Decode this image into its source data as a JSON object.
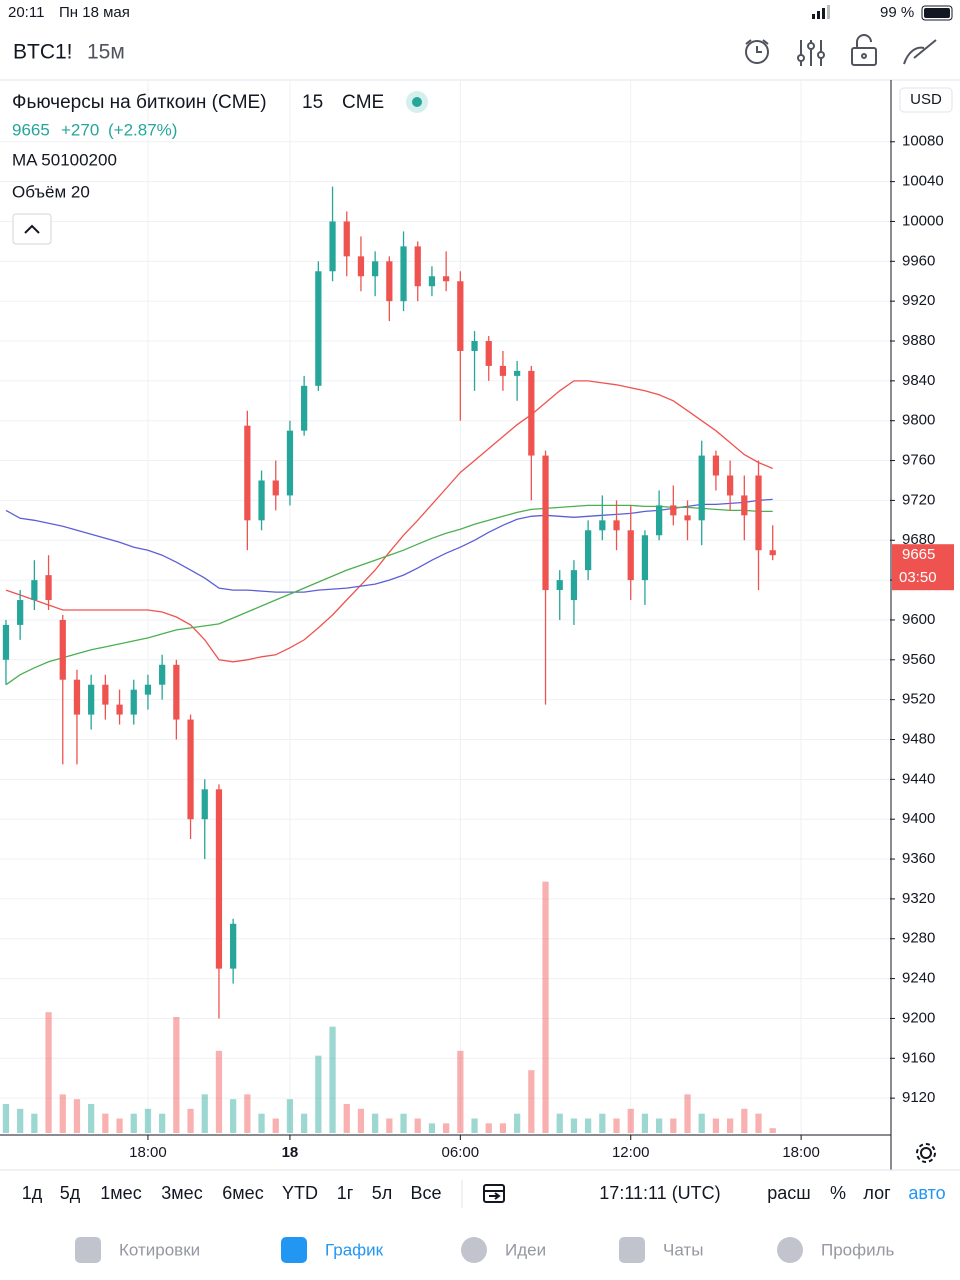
{
  "status_bar": {
    "time": "20:11",
    "date": "Пн 18 мая",
    "battery": "99 %"
  },
  "header": {
    "symbol": "BTC1!",
    "interval": "15м"
  },
  "legend": {
    "name": "Фьючерсы на биткоин (CME)",
    "interval": "15",
    "exchange": "CME",
    "price": "9665",
    "change": "+270",
    "change_pct": "(+2.87%)",
    "ma": "MA 50100200",
    "volume": "Объём 20"
  },
  "chart_data": {
    "type": "candlestick",
    "currency": "USD",
    "open": [
      9560,
      9595,
      9620,
      9645,
      9600,
      9540,
      9505,
      9535,
      9515,
      9505,
      9525,
      9535,
      9555,
      9500,
      9400,
      9430,
      9250,
      9795,
      9700,
      9740,
      9725,
      9790,
      9835,
      9950,
      10000,
      9965,
      9945,
      9960,
      9920,
      9975,
      9935,
      9945,
      9940,
      9870,
      9880,
      9855,
      9845,
      9850,
      9765,
      9630,
      9620,
      9650,
      9690,
      9700,
      9690,
      9640,
      9685,
      9715,
      9705,
      9700,
      9765,
      9745,
      9725,
      9745,
      9670
    ],
    "high": [
      9600,
      9630,
      9660,
      9665,
      9605,
      9550,
      9545,
      9545,
      9530,
      9540,
      9545,
      9565,
      9560,
      9505,
      9440,
      9435,
      9300,
      9810,
      9750,
      9760,
      9800,
      9845,
      9960,
      10035,
      10010,
      9985,
      9970,
      9965,
      9990,
      9980,
      9955,
      9970,
      9950,
      9890,
      9885,
      9870,
      9860,
      9855,
      9770,
      9650,
      9660,
      9700,
      9725,
      9720,
      9715,
      9690,
      9730,
      9735,
      9720,
      9780,
      9770,
      9760,
      9745,
      9760,
      9695
    ],
    "low": [
      9535,
      9580,
      9610,
      9610,
      9455,
      9455,
      9490,
      9500,
      9495,
      9495,
      9510,
      9520,
      9480,
      9380,
      9360,
      9200,
      9235,
      9670,
      9690,
      9710,
      9715,
      9785,
      9830,
      9940,
      9945,
      9930,
      9925,
      9900,
      9910,
      9920,
      9925,
      9930,
      9800,
      9830,
      9840,
      9830,
      9820,
      9720,
      9515,
      9600,
      9595,
      9640,
      9680,
      9670,
      9620,
      9615,
      9680,
      9695,
      9680,
      9675,
      9730,
      9710,
      9680,
      9630,
      9660
    ],
    "close": [
      9595,
      9620,
      9640,
      9620,
      9540,
      9505,
      9535,
      9515,
      9505,
      9530,
      9535,
      9555,
      9500,
      9400,
      9430,
      9250,
      9295,
      9700,
      9740,
      9725,
      9790,
      9835,
      9950,
      10000,
      9965,
      9945,
      9960,
      9920,
      9975,
      9935,
      9945,
      9940,
      9870,
      9880,
      9855,
      9845,
      9850,
      9765,
      9630,
      9640,
      9650,
      9690,
      9700,
      9690,
      9640,
      9685,
      9715,
      9705,
      9700,
      9765,
      9745,
      9725,
      9705,
      9670,
      9665
    ],
    "volume": [
      30,
      25,
      20,
      125,
      40,
      35,
      30,
      20,
      15,
      20,
      25,
      20,
      120,
      25,
      40,
      85,
      35,
      40,
      20,
      15,
      35,
      20,
      80,
      110,
      30,
      25,
      20,
      15,
      20,
      15,
      10,
      10,
      85,
      15,
      10,
      10,
      20,
      65,
      260,
      20,
      15,
      15,
      20,
      15,
      25,
      20,
      15,
      15,
      40,
      20,
      15,
      15,
      25,
      20,
      5
    ],
    "ma": [
      {
        "color": "#ef5350",
        "values": [
          9630,
          9625,
          9620,
          9615,
          9610,
          9610,
          9610,
          9610,
          9610,
          9610,
          9610,
          9608,
          9603,
          9595,
          9580,
          9560,
          9558,
          9560,
          9563,
          9565,
          9572,
          9580,
          9592,
          9605,
          9620,
          9635,
          9650,
          9668,
          9685,
          9700,
          9716,
          9732,
          9748,
          9760,
          9772,
          9784,
          9796,
          9806,
          9818,
          9830,
          9840,
          9840,
          9838,
          9836,
          9833,
          9830,
          9826,
          9820,
          9810,
          9800,
          9790,
          9778,
          9766,
          9758,
          9752
        ]
      },
      {
        "color": "#5b5fd6",
        "values": [
          9710,
          9702,
          9700,
          9697,
          9694,
          9690,
          9686,
          9682,
          9678,
          9673,
          9670,
          9665,
          9658,
          9650,
          9642,
          9632,
          9630,
          9630,
          9629,
          9628,
          9628,
          9628,
          9630,
          9631,
          9632,
          9634,
          9636,
          9640,
          9645,
          9652,
          9660,
          9667,
          9673,
          9680,
          9688,
          9695,
          9701,
          9704,
          9705,
          9704,
          9703,
          9704,
          9705,
          9706,
          9707,
          9709,
          9710,
          9712,
          9714,
          9716,
          9716,
          9717,
          9718,
          9720,
          9721
        ]
      },
      {
        "color": "#4caf50",
        "values": [
          9535,
          9545,
          9552,
          9558,
          9562,
          9566,
          9570,
          9573,
          9576,
          9579,
          9582,
          9586,
          9590,
          9592,
          9594,
          9596,
          9602,
          9608,
          9614,
          9620,
          9626,
          9632,
          9638,
          9644,
          9650,
          9655,
          9660,
          9665,
          9670,
          9676,
          9682,
          9687,
          9691,
          9696,
          9700,
          9704,
          9708,
          9711,
          9712,
          9713,
          9714,
          9715,
          9715,
          9715,
          9715,
          9714,
          9714,
          9713,
          9713,
          9712,
          9711,
          9710,
          9710,
          9709,
          9709
        ]
      }
    ],
    "up_color": "#26a69a",
    "down_color": "#ef5350",
    "ylim": [
      9083,
      10142
    ],
    "yticks": [
      9120,
      9160,
      9200,
      9240,
      9280,
      9320,
      9360,
      9400,
      9440,
      9480,
      9520,
      9560,
      9600,
      9640,
      9680,
      9720,
      9760,
      9800,
      9840,
      9880,
      9920,
      9960,
      10000,
      10040,
      10080
    ],
    "xlim": [
      -0.42,
      62.26
    ],
    "xticks": [
      {
        "value": 10,
        "label": "18:00"
      },
      {
        "value": 20,
        "label": "18"
      },
      {
        "value": 32,
        "label": "06:00"
      },
      {
        "value": 44,
        "label": "12:00"
      },
      {
        "value": 56,
        "label": "18:00"
      }
    ],
    "vlim": [
      0,
      300
    ],
    "last_price": 9665,
    "countdown": "03:50",
    "grid": true
  },
  "toolbar": {
    "periods": [
      "1д",
      "5д",
      "1мес",
      "3мес",
      "6мес",
      "YTD",
      "1г",
      "5л",
      "Все"
    ],
    "clock": "17:11:11 (UTC)",
    "options": [
      "расш",
      "%",
      "лог",
      "авто"
    ]
  },
  "tabs": [
    "Котировки",
    "График",
    "Идеи",
    "Чаты",
    "Профиль"
  ]
}
